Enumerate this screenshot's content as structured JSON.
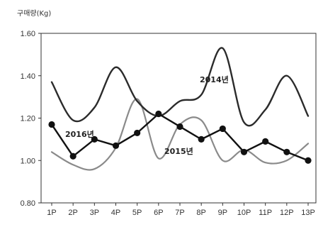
{
  "chart_data": {
    "type": "line",
    "ylabel": "구매량(Kg)",
    "xlabel": "",
    "title": "",
    "categories": [
      "1P",
      "2P",
      "3P",
      "4P",
      "5P",
      "6P",
      "7P",
      "8P",
      "9P",
      "10P",
      "11P",
      "12P",
      "13P"
    ],
    "ylim": [
      0.8,
      1.6
    ],
    "yticks": [
      "0.80",
      "1.00",
      "1.20",
      "1.40",
      "1.60"
    ],
    "grid": false,
    "series": [
      {
        "name": "2014년",
        "values": [
          1.37,
          1.19,
          1.25,
          1.44,
          1.28,
          1.21,
          1.28,
          1.31,
          1.53,
          1.18,
          1.24,
          1.4,
          1.21
        ],
        "color": "#2b2b2b",
        "smooth": true,
        "markers": false
      },
      {
        "name": "2015년",
        "values": [
          1.04,
          0.98,
          0.96,
          1.06,
          1.29,
          1.01,
          1.17,
          1.19,
          1.0,
          1.05,
          0.99,
          1.0,
          1.08
        ],
        "color": "#8a8a8a",
        "smooth": true,
        "markers": false
      },
      {
        "name": "2016년",
        "values": [
          1.17,
          1.02,
          1.1,
          1.07,
          1.13,
          1.22,
          1.16,
          1.1,
          1.15,
          1.04,
          1.09,
          1.04,
          1.0
        ],
        "color": "#111111",
        "smooth": false,
        "markers": true
      }
    ]
  }
}
